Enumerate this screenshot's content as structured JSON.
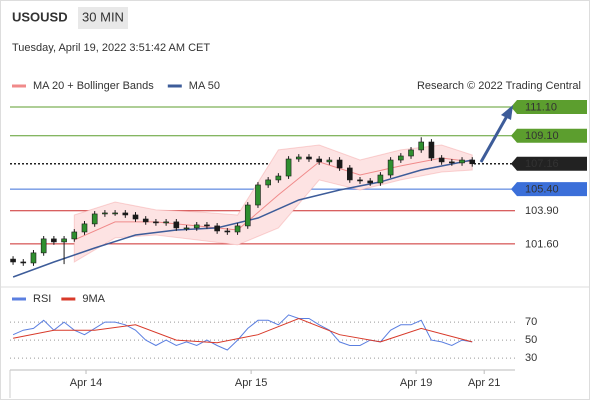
{
  "header": {
    "symbol": "USOUSD",
    "interval": "30 MIN",
    "datetime": "Tuesday, April 19, 2022 3:51:42 AM CET"
  },
  "chart_data": [
    {
      "type": "candlestick",
      "source": "Research © 2022 Trading Central",
      "xlim": [
        -0.3,
        48.7
      ],
      "ylim": [
        98.96,
        111.93
      ],
      "up_color": "#2f8f2f",
      "down_color": "#1a1a1a",
      "candles": {
        "open": [
          100.55,
          100.35,
          100.28,
          100.98,
          101.95,
          101.74,
          101.95,
          102.43,
          102.99,
          103.68,
          103.75,
          103.75,
          103.61,
          103.33,
          103.13,
          103.06,
          103.13,
          102.71,
          102.71,
          102.92,
          102.85,
          102.5,
          102.43,
          102.85,
          104.3,
          105.69,
          106.04,
          106.31,
          107.49,
          107.63,
          107.49,
          107.29,
          107.42,
          106.87,
          106.04,
          105.97,
          105.83,
          106.38,
          107.42,
          107.7,
          108.12,
          108.67,
          107.56,
          107.29,
          107.22,
          107.42
        ],
        "high": [
          100.75,
          100.55,
          101.18,
          102.15,
          102.15,
          102.15,
          102.63,
          103.19,
          103.88,
          103.95,
          103.95,
          103.95,
          103.81,
          103.53,
          103.33,
          103.33,
          103.33,
          102.91,
          103.12,
          103.12,
          103.05,
          102.7,
          103.05,
          104.5,
          105.89,
          106.24,
          106.51,
          107.69,
          107.83,
          107.83,
          107.69,
          107.62,
          107.62,
          107.07,
          106.24,
          106.17,
          106.58,
          107.62,
          107.9,
          108.32,
          109.0,
          108.87,
          107.76,
          107.49,
          107.62,
          107.62
        ],
        "low": [
          100.15,
          100.08,
          100.08,
          100.78,
          101.54,
          100.2,
          101.75,
          102.23,
          102.79,
          103.48,
          103.55,
          103.41,
          103.13,
          102.93,
          102.86,
          102.86,
          102.51,
          102.51,
          102.51,
          102.65,
          102.3,
          102.23,
          102.23,
          102.65,
          104.1,
          105.49,
          105.84,
          106.11,
          107.29,
          107.29,
          107.09,
          107.09,
          106.67,
          105.84,
          105.77,
          105.63,
          105.63,
          106.18,
          107.22,
          107.5,
          107.92,
          107.36,
          107.09,
          107.02,
          107.02,
          106.96
        ],
        "close": [
          100.35,
          100.28,
          100.98,
          101.95,
          101.74,
          101.95,
          102.43,
          102.99,
          103.68,
          103.75,
          103.75,
          103.61,
          103.33,
          103.13,
          103.06,
          103.13,
          102.71,
          102.71,
          102.92,
          102.85,
          102.5,
          102.43,
          102.85,
          104.3,
          105.69,
          106.04,
          106.31,
          107.49,
          107.63,
          107.49,
          107.29,
          107.42,
          106.87,
          106.04,
          105.97,
          105.83,
          106.38,
          107.42,
          107.7,
          108.12,
          108.67,
          107.56,
          107.29,
          107.22,
          107.42,
          107.16
        ]
      },
      "series": [
        {
          "name": "MA 20 + Bollinger Bands",
          "color": "#f08a8a",
          "band_color": "#fde3e3",
          "x": [
            6,
            10,
            14,
            18,
            22,
            26,
            30,
            34,
            38,
            42,
            45
          ],
          "values": [
            101.88,
            103.13,
            103.13,
            102.85,
            102.57,
            105.0,
            107.29,
            106.38,
            107.01,
            107.56,
            107.29
          ],
          "upper": [
            103.61,
            104.51,
            103.96,
            103.82,
            103.61,
            108.12,
            108.46,
            107.42,
            108.12,
            108.46,
            107.77
          ],
          "lower": [
            100.35,
            102.02,
            102.22,
            101.88,
            101.53,
            102.71,
            106.04,
            105.34,
            106.04,
            106.59,
            106.73
          ]
        },
        {
          "name": "MA 50",
          "color": "#3d5c99",
          "x": [
            0,
            4,
            8,
            12,
            16,
            20,
            24,
            28,
            32,
            36,
            40,
            45
          ],
          "values": [
            99.31,
            100.35,
            101.32,
            102.22,
            102.57,
            102.71,
            103.4,
            104.65,
            105.34,
            105.9,
            106.73,
            107.42
          ]
        }
      ],
      "levels": [
        {
          "value": 111.1,
          "label": "111.10",
          "color": "#5c9e2e",
          "boxed": true,
          "dotted": false
        },
        {
          "value": 109.1,
          "label": "109.10",
          "color": "#5c9e2e",
          "boxed": true,
          "dotted": false
        },
        {
          "value": 107.16,
          "color": "#222222",
          "boxed": true,
          "dotted": true
        },
        {
          "value": 105.4,
          "label": "105.40",
          "color": "#3b6fd9",
          "boxed": true,
          "dotted": false
        },
        {
          "value": 103.9,
          "label": "103.90",
          "color": "#cc2b2b",
          "boxed": false,
          "dotted": false
        },
        {
          "value": 101.6,
          "label": "101.60",
          "color": "#cc2b2b",
          "boxed": false,
          "dotted": false
        }
      ]
    },
    {
      "type": "line",
      "xlim": [
        -0.3,
        48.7
      ],
      "ylim": [
        19,
        83.4
      ],
      "yticks": [
        70,
        50,
        30
      ],
      "xticks": [
        {
          "value": 7.15,
          "label": "Apr 14"
        },
        {
          "value": 23.33,
          "label": "Apr 15"
        },
        {
          "value": 39.5,
          "label": "Apr 19"
        },
        {
          "value": 46.17,
          "label": "Apr 21"
        }
      ],
      "series": [
        {
          "name": "RSI",
          "color": "#5b7fe0",
          "x": [
            0,
            1,
            2,
            3,
            4,
            5,
            6,
            7,
            8,
            9,
            10,
            11,
            12,
            13,
            14,
            15,
            16,
            17,
            18,
            19,
            20,
            21,
            22,
            23,
            24,
            25,
            26,
            27,
            28,
            29,
            30,
            31,
            32,
            33,
            34,
            35,
            36,
            37,
            38,
            39,
            40,
            41,
            42,
            43,
            44,
            45
          ],
          "values": [
            56,
            61,
            63,
            72,
            61,
            70,
            61,
            56,
            63,
            70,
            70,
            67,
            61,
            50,
            44,
            50,
            44,
            48,
            44,
            50,
            44,
            39,
            50,
            63,
            72,
            72,
            67,
            78,
            74,
            74,
            67,
            61,
            48,
            44,
            44,
            50,
            48,
            61,
            67,
            67,
            72,
            50,
            48,
            44,
            50,
            48
          ]
        },
        {
          "name": "9MA",
          "color": "#d83a2a",
          "x": [
            0,
            4,
            8,
            12,
            16,
            20,
            24,
            28,
            32,
            36,
            40,
            45
          ],
          "values": [
            52,
            61,
            61,
            67,
            50,
            47,
            56,
            74,
            56,
            48,
            63,
            48
          ]
        }
      ]
    }
  ]
}
